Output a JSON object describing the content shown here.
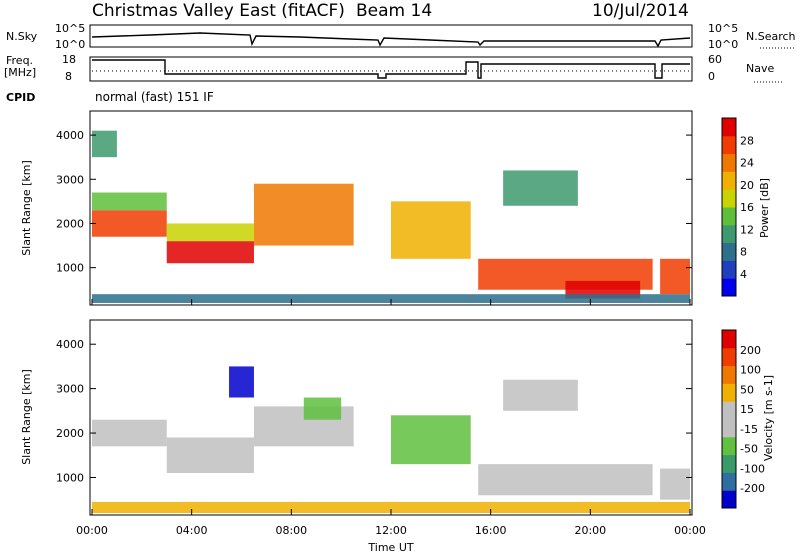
{
  "header": {
    "title": "Christmas Valley East (fitACF)",
    "beam": "Beam 14",
    "date": "10/Jul/2014"
  },
  "params_panel": {
    "nsky_label": "N.Sky",
    "nsearch_label": "N.Search",
    "nsky_ticks": [
      "10^5",
      "10^0"
    ],
    "nsearch_ticks": [
      "10^5",
      "10^0"
    ],
    "freq_label_1": "Freq.",
    "freq_label_2": "[MHz]",
    "freq_ticks": [
      "18",
      "8"
    ],
    "nave_label": "Nave",
    "nave_ticks": [
      "60",
      "0"
    ],
    "cpid_label": "CPID",
    "cpid_value": "normal (fast) 151 IF"
  },
  "colors": {
    "power_scale": [
      "#0000ee",
      "#1f3fbf",
      "#2e6f8c",
      "#3e9a6e",
      "#5fbf3a",
      "#c8d400",
      "#f0b000",
      "#f07800",
      "#f03c00",
      "#e00000"
    ],
    "velocity_scale": [
      "#0000cc",
      "#2e6fa0",
      "#3a9a6a",
      "#60c040",
      "#c0c0c0",
      "#c0c0c0",
      "#f0b000",
      "#f07800",
      "#f03c00",
      "#e00000"
    ]
  },
  "chart_data": [
    {
      "type": "heatmap",
      "panel": "power",
      "ylabel": "Slant Range [km]",
      "ylim": [
        200,
        4500
      ],
      "y_ticks": [
        "1000",
        "2000",
        "3000",
        "4000"
      ],
      "colorbar_label": "Power [dB]",
      "colorbar_ticks": [
        "4",
        "8",
        "12",
        "16",
        "20",
        "24",
        "28"
      ],
      "bands": [
        {
          "t": [
            0,
            3
          ],
          "range": [
            1700,
            2300
          ],
          "level": 0.9
        },
        {
          "t": [
            0,
            3
          ],
          "range": [
            2300,
            2700
          ],
          "level": 0.45
        },
        {
          "t": [
            0,
            1
          ],
          "range": [
            3500,
            4100
          ],
          "level": 0.35
        },
        {
          "t": [
            3,
            6.5
          ],
          "range": [
            1100,
            1600
          ],
          "level": 0.95
        },
        {
          "t": [
            3,
            6.5
          ],
          "range": [
            1600,
            2000
          ],
          "level": 0.5
        },
        {
          "t": [
            6.5,
            10.5
          ],
          "range": [
            1500,
            2900
          ],
          "level": 0.8
        },
        {
          "t": [
            12,
            15.2
          ],
          "range": [
            1200,
            2500
          ],
          "level": 0.7
        },
        {
          "t": [
            15.5,
            22.5
          ],
          "range": [
            500,
            1200
          ],
          "level": 0.85
        },
        {
          "t": [
            19,
            22
          ],
          "range": [
            300,
            700
          ],
          "level": 0.98
        },
        {
          "t": [
            16.5,
            19.5
          ],
          "range": [
            2400,
            3200
          ],
          "level": 0.3
        },
        {
          "t": [
            22.8,
            24
          ],
          "range": [
            400,
            1200
          ],
          "level": 0.9
        },
        {
          "t": [
            0,
            24
          ],
          "range": [
            200,
            400
          ],
          "level": 0.2
        }
      ]
    },
    {
      "type": "heatmap",
      "panel": "velocity",
      "ylabel": "Slant Range [km]",
      "xlabel": "Time UT",
      "ylim": [
        200,
        4500
      ],
      "y_ticks": [
        "1000",
        "2000",
        "3000",
        "4000"
      ],
      "x_ticks": [
        "00:00",
        "04:00",
        "08:00",
        "12:00",
        "16:00",
        "20:00",
        "00:00"
      ],
      "colorbar_label": "Velocity [m s-1]",
      "colorbar_ticks": [
        "200",
        "100",
        "50",
        "15",
        "-15",
        "-50",
        "-100",
        "-200"
      ],
      "bands": [
        {
          "t": [
            0,
            3
          ],
          "range": [
            1700,
            2300
          ],
          "level": 0.45
        },
        {
          "t": [
            3,
            6.5
          ],
          "range": [
            1100,
            1900
          ],
          "level": 0.6
        },
        {
          "t": [
            5.5,
            6.5
          ],
          "range": [
            2800,
            3500
          ],
          "level": 0.02
        },
        {
          "t": [
            6.5,
            10.5
          ],
          "range": [
            1700,
            2600
          ],
          "level": 0.45
        },
        {
          "t": [
            8.5,
            10
          ],
          "range": [
            2300,
            2800
          ],
          "level": 0.3
        },
        {
          "t": [
            12,
            15.2
          ],
          "range": [
            1300,
            2400
          ],
          "level": 0.35
        },
        {
          "t": [
            15.5,
            22.5
          ],
          "range": [
            600,
            1300
          ],
          "level": 0.45
        },
        {
          "t": [
            16.5,
            19.5
          ],
          "range": [
            2500,
            3200
          ],
          "level": 0.45
        },
        {
          "t": [
            22.8,
            24
          ],
          "range": [
            500,
            1200
          ],
          "level": 0.45
        },
        {
          "t": [
            0,
            24
          ],
          "range": [
            200,
            450
          ],
          "level": 0.62
        }
      ]
    }
  ]
}
